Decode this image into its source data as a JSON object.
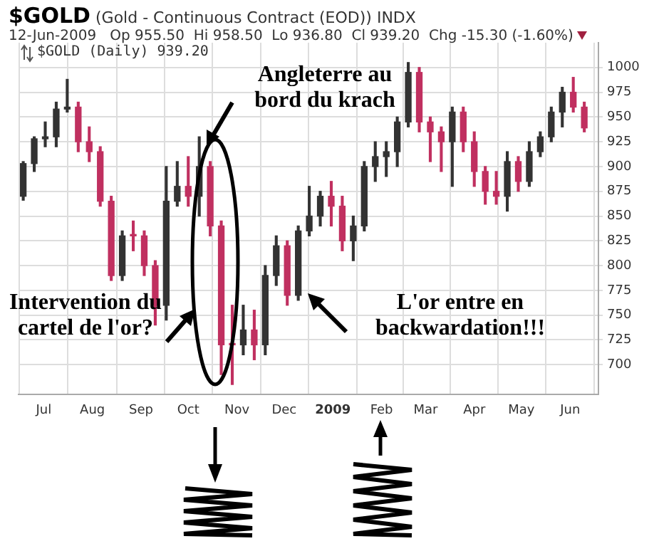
{
  "chart_data": {
    "type": "candlestick",
    "title": "$GOLD (Gold - Continuous Contract (EOD)) INDX",
    "subtitle": "12-Jun-2009   Op 955.50  Hi 958.50  Lo 936.80  Cl 939.20  Chg -15.30 (-1.60%)",
    "annotations": [
      "$GOLD (Daily) 939.20",
      "Angleterre au bord du krach",
      "Intervention du cartel de l'or?",
      "L'or entre en backwardation!!!"
    ],
    "x": [
      "2008-06-18",
      "2008-06-25",
      "2008-07-02",
      "2008-07-09",
      "2008-07-16",
      "2008-07-23",
      "2008-07-30",
      "2008-08-06",
      "2008-08-13",
      "2008-08-20",
      "2008-08-27",
      "2008-09-03",
      "2008-09-10",
      "2008-09-17",
      "2008-09-24",
      "2008-10-01",
      "2008-10-08",
      "2008-10-15",
      "2008-10-22",
      "2008-10-29",
      "2008-11-05",
      "2008-11-12",
      "2008-11-19",
      "2008-11-26",
      "2008-12-03",
      "2008-12-10",
      "2008-12-17",
      "2008-12-24",
      "2008-12-31",
      "2009-01-07",
      "2009-01-14",
      "2009-01-21",
      "2009-01-28",
      "2009-02-04",
      "2009-02-11",
      "2009-02-18",
      "2009-02-25",
      "2009-03-04",
      "2009-03-11",
      "2009-03-18",
      "2009-03-25",
      "2009-04-01",
      "2009-04-08",
      "2009-04-15",
      "2009-04-22",
      "2009-04-29",
      "2009-05-06",
      "2009-05-13",
      "2009-05-20",
      "2009-05-27",
      "2009-06-03",
      "2009-06-10"
    ],
    "ohlc": [
      [
        870,
        905,
        866,
        903
      ],
      [
        903,
        930,
        895,
        928
      ],
      [
        928,
        945,
        920,
        930
      ],
      [
        930,
        965,
        920,
        958
      ],
      [
        958,
        988,
        955,
        960
      ],
      [
        960,
        965,
        915,
        925
      ],
      [
        925,
        940,
        905,
        915
      ],
      [
        915,
        920,
        860,
        865
      ],
      [
        865,
        870,
        785,
        790
      ],
      [
        790,
        835,
        785,
        830
      ],
      [
        830,
        845,
        815,
        830
      ],
      [
        830,
        835,
        790,
        800
      ],
      [
        800,
        805,
        740,
        760
      ],
      [
        760,
        900,
        745,
        865
      ],
      [
        865,
        905,
        860,
        880
      ],
      [
        880,
        910,
        860,
        870
      ],
      [
        870,
        930,
        850,
        900
      ],
      [
        900,
        905,
        830,
        840
      ],
      [
        840,
        845,
        690,
        720
      ],
      [
        720,
        760,
        680,
        720
      ],
      [
        720,
        760,
        710,
        735
      ],
      [
        735,
        755,
        705,
        720
      ],
      [
        720,
        800,
        710,
        790
      ],
      [
        790,
        830,
        780,
        820
      ],
      [
        820,
        825,
        760,
        770
      ],
      [
        770,
        840,
        765,
        835
      ],
      [
        835,
        880,
        830,
        850
      ],
      [
        850,
        875,
        840,
        870
      ],
      [
        870,
        885,
        840,
        860
      ],
      [
        860,
        870,
        815,
        825
      ],
      [
        825,
        850,
        805,
        840
      ],
      [
        840,
        905,
        835,
        900
      ],
      [
        900,
        925,
        885,
        910
      ],
      [
        910,
        925,
        890,
        915
      ],
      [
        915,
        950,
        900,
        945
      ],
      [
        945,
        1005,
        940,
        995
      ],
      [
        995,
        1000,
        935,
        945
      ],
      [
        945,
        950,
        905,
        935
      ],
      [
        935,
        940,
        895,
        925
      ],
      [
        925,
        960,
        880,
        955
      ],
      [
        955,
        960,
        915,
        925
      ],
      [
        925,
        935,
        880,
        895
      ],
      [
        895,
        900,
        862,
        875
      ],
      [
        875,
        895,
        862,
        870
      ],
      [
        870,
        915,
        855,
        905
      ],
      [
        905,
        910,
        875,
        885
      ],
      [
        885,
        925,
        880,
        915
      ],
      [
        915,
        935,
        910,
        930
      ],
      [
        930,
        960,
        925,
        955
      ],
      [
        955,
        980,
        940,
        975
      ],
      [
        975,
        990,
        955,
        960
      ],
      [
        960,
        965,
        935,
        939
      ]
    ],
    "colors": [
      "#333333",
      "#333333",
      "#333333",
      "#333333",
      "#333333",
      "#c03060",
      "#c03060",
      "#c03060",
      "#c03060",
      "#333333",
      "#c03060",
      "#c03060",
      "#c03060",
      "#333333",
      "#333333",
      "#c03060",
      "#333333",
      "#c03060",
      "#c03060",
      "#c03060",
      "#333333",
      "#c03060",
      "#333333",
      "#333333",
      "#c03060",
      "#333333",
      "#333333",
      "#333333",
      "#c03060",
      "#c03060",
      "#333333",
      "#333333",
      "#333333",
      "#333333",
      "#333333",
      "#333333",
      "#c03060",
      "#c03060",
      "#c03060",
      "#333333",
      "#c03060",
      "#c03060",
      "#c03060",
      "#c03060",
      "#333333",
      "#c03060",
      "#333333",
      "#333333",
      "#333333",
      "#333333",
      "#c03060",
      "#c03060"
    ],
    "xlim": [
      "2008-06-15",
      "2009-06-19"
    ],
    "xticks": [
      {
        "value": "2008-07-01",
        "label": "Jul"
      },
      {
        "value": "2008-08-01",
        "label": "Aug"
      },
      {
        "value": "2008-09-01",
        "label": "Sep"
      },
      {
        "value": "2008-10-01",
        "label": "Oct"
      },
      {
        "value": "2008-11-01",
        "label": "Nov"
      },
      {
        "value": "2008-12-01",
        "label": "Dec"
      },
      {
        "value": "2009-01-01",
        "label": "2009"
      },
      {
        "value": "2009-02-01",
        "label": "Feb"
      },
      {
        "value": "2009-03-01",
        "label": "Mar"
      },
      {
        "value": "2009-04-01",
        "label": "Apr"
      },
      {
        "value": "2009-05-01",
        "label": "May"
      },
      {
        "value": "2009-06-01",
        "label": "Jun"
      }
    ],
    "ylim": [
      670,
      1025
    ],
    "yticks": [
      700,
      725,
      750,
      775,
      800,
      825,
      850,
      875,
      900,
      925,
      950,
      975,
      1000
    ],
    "grid": true,
    "legend": false
  }
}
